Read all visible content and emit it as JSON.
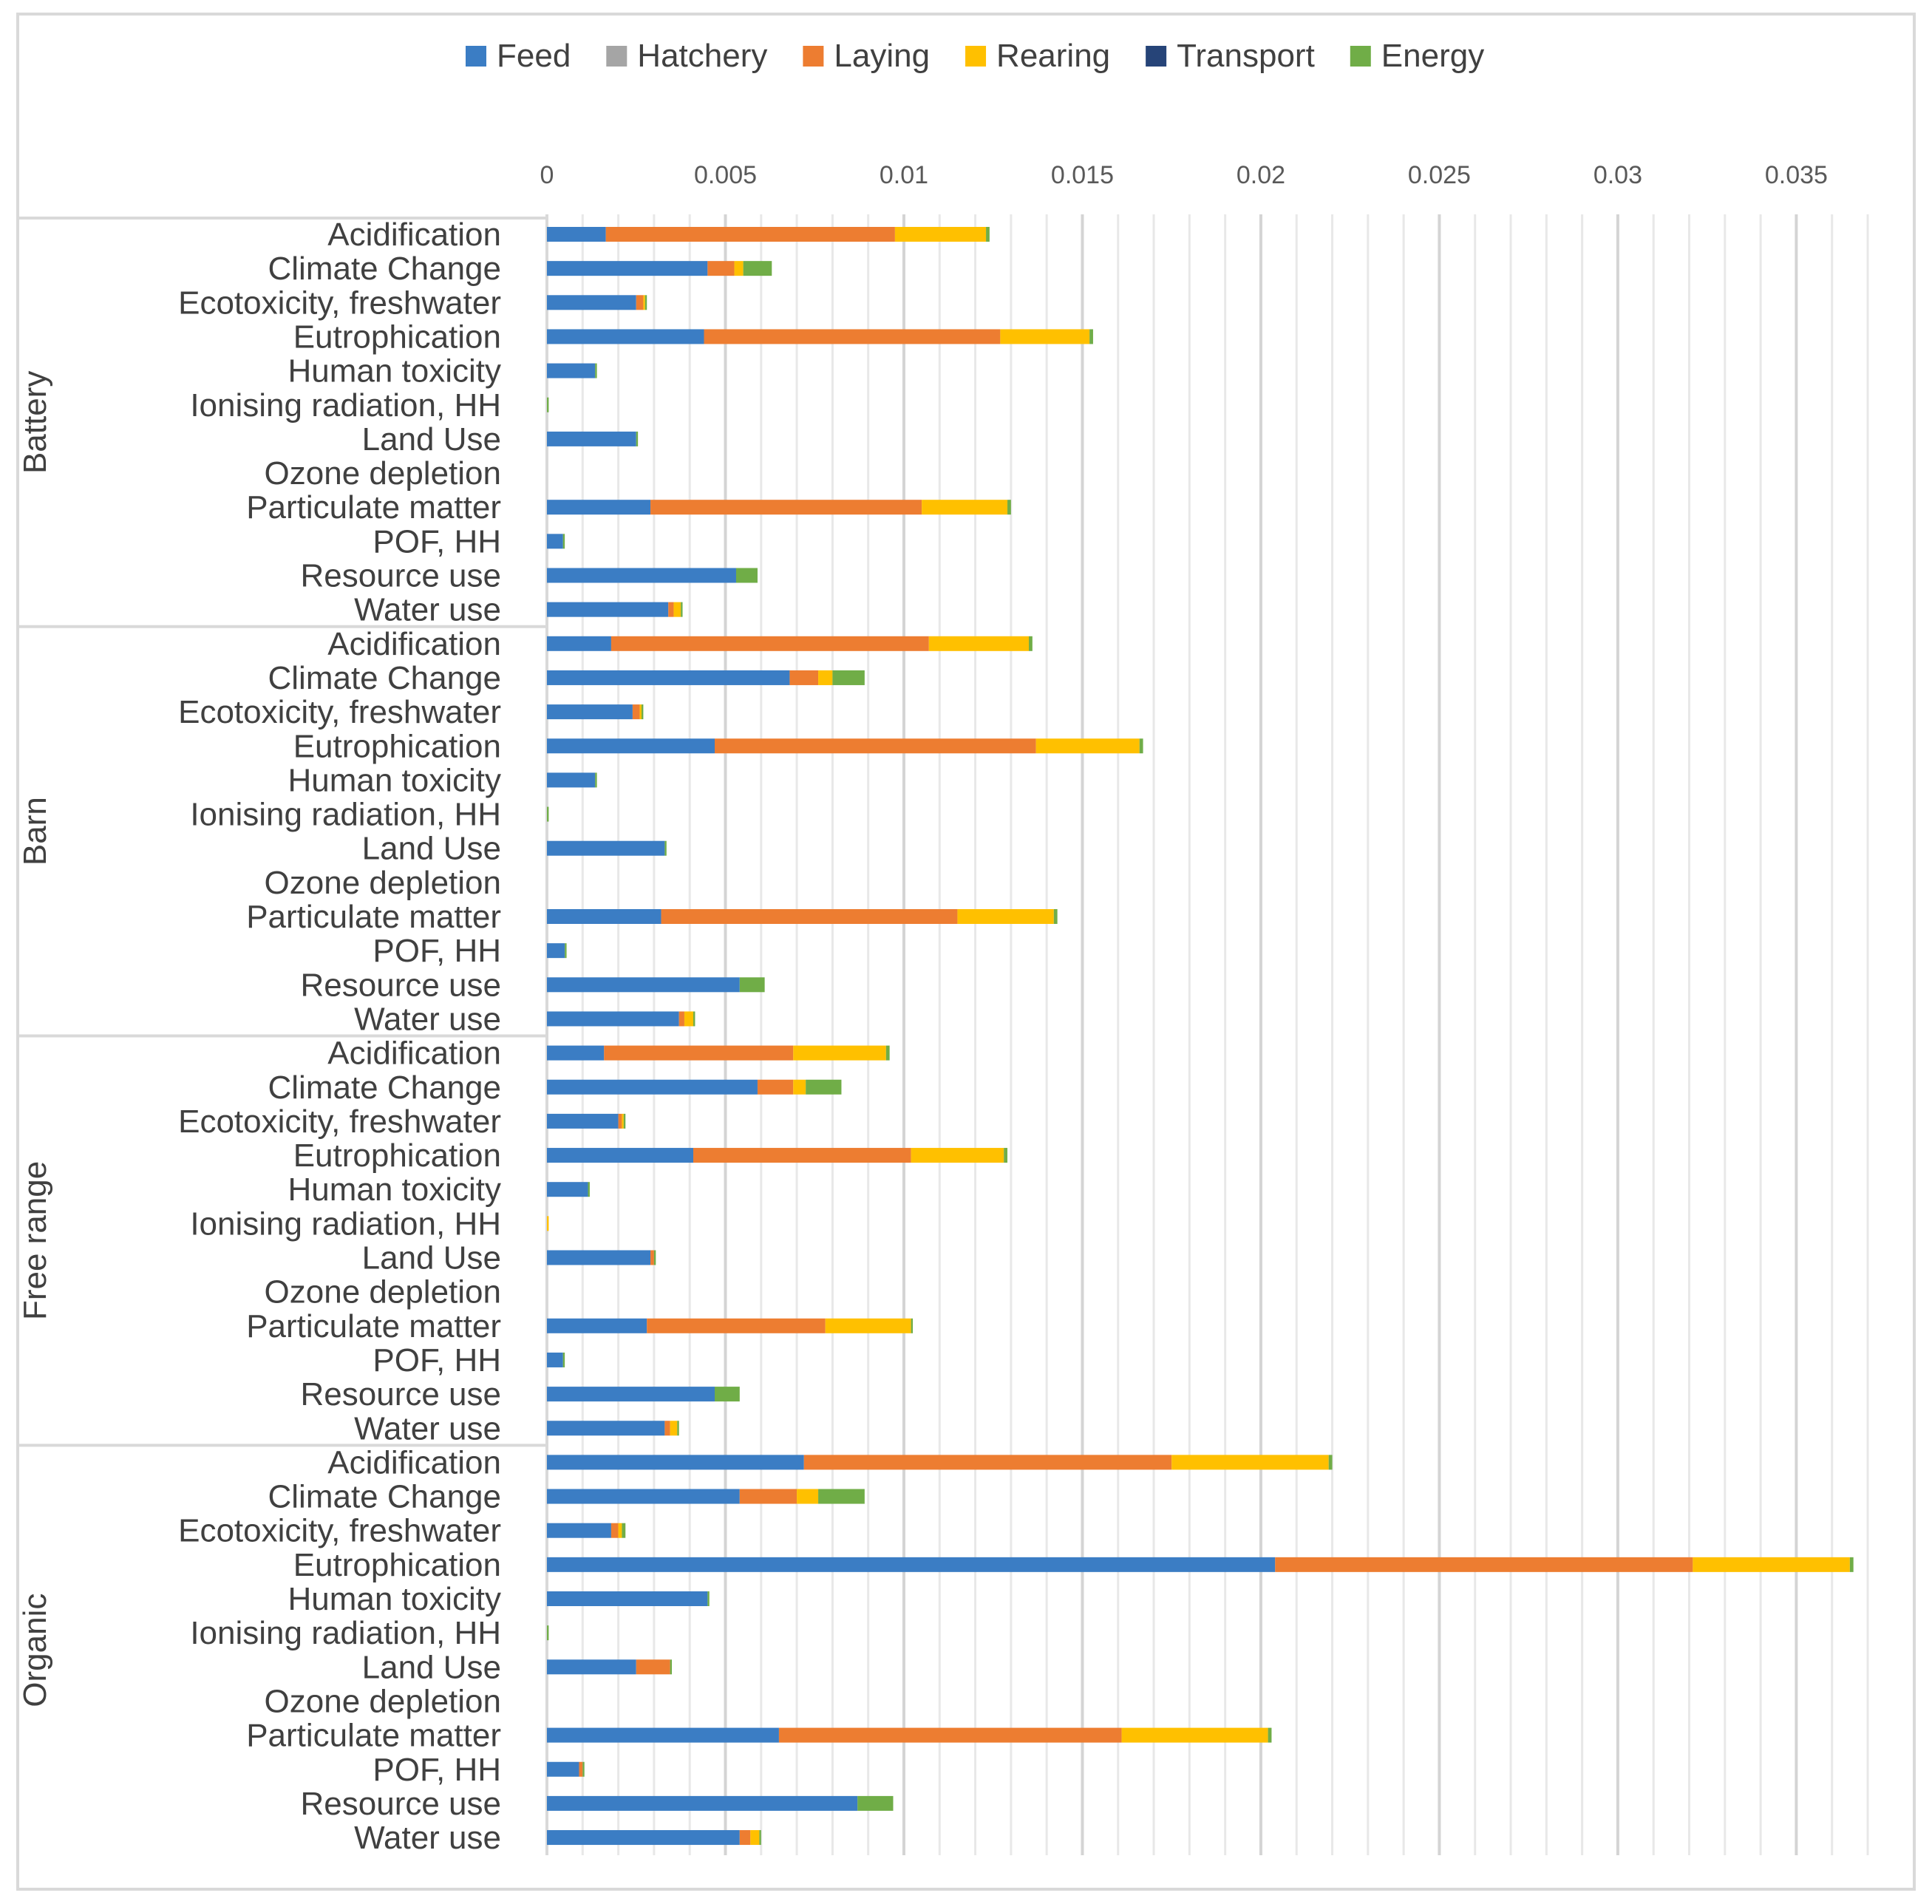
{
  "chart_data": {
    "type": "bar",
    "orientation": "horizontal",
    "stacked": true,
    "title": "",
    "xlabel": "",
    "ylabel": "",
    "xlim": [
      0,
      0.037
    ],
    "x_ticks": [
      0,
      0.005,
      0.01,
      0.015,
      0.02,
      0.025,
      0.03,
      0.035
    ],
    "x_tick_labels": [
      "0",
      "0.005",
      "0.01",
      "0.015",
      "0.02",
      "0.025",
      "0.03",
      "0.035"
    ],
    "grid": "vertical",
    "legend_position": "top",
    "series": [
      {
        "name": "Feed",
        "color": "#3B7DC4"
      },
      {
        "name": "Hatchery",
        "color": "#A5A5A5"
      },
      {
        "name": "Laying",
        "color": "#ED7D31"
      },
      {
        "name": "Rearing",
        "color": "#FFC000"
      },
      {
        "name": "Transport",
        "color": "#264478"
      },
      {
        "name": "Energy",
        "color": "#70AD47"
      }
    ],
    "groups": [
      {
        "name": "Battery",
        "rows": [
          {
            "label": "Acidification",
            "values": [
              0.00165,
              0,
              0.0081,
              0.00255,
              0,
              0.0001
            ]
          },
          {
            "label": "Climate Change",
            "values": [
              0.0045,
              0,
              0.00075,
              0.00025,
              0,
              0.0008
            ]
          },
          {
            "label": "Ecotoxicity, freshwater",
            "values": [
              0.0025,
              0,
              0.0002,
              5e-05,
              0,
              5e-05
            ]
          },
          {
            "label": "Eutrophication",
            "values": [
              0.0044,
              0,
              0.0083,
              0.0025,
              0,
              0.0001
            ]
          },
          {
            "label": "Human toxicity",
            "values": [
              0.00135,
              0,
              0,
              0,
              0,
              5e-05
            ]
          },
          {
            "label": "Ionising radiation, HH",
            "values": [
              0,
              0,
              0,
              0,
              0,
              5e-05
            ]
          },
          {
            "label": "Land Use",
            "values": [
              0.0025,
              0,
              0,
              0,
              0,
              5e-05
            ]
          },
          {
            "label": "Ozone depletion",
            "values": [
              0,
              0,
              0,
              0,
              0,
              0
            ]
          },
          {
            "label": "Particulate matter",
            "values": [
              0.0029,
              0,
              0.0076,
              0.0024,
              0,
              0.0001
            ]
          },
          {
            "label": "POF, HH",
            "values": [
              0.00045,
              0,
              0,
              0,
              0,
              5e-05
            ]
          },
          {
            "label": "Resource use",
            "values": [
              0.0053,
              0,
              0,
              0,
              0,
              0.0006
            ]
          },
          {
            "label": "Water use",
            "values": [
              0.0034,
              0,
              0.00015,
              0.0002,
              0,
              5e-05
            ]
          }
        ]
      },
      {
        "name": "Barn",
        "rows": [
          {
            "label": "Acidification",
            "values": [
              0.0018,
              0,
              0.0089,
              0.0028,
              0,
              0.0001
            ]
          },
          {
            "label": "Climate Change",
            "values": [
              0.0068,
              0,
              0.0008,
              0.0004,
              0,
              0.0009
            ]
          },
          {
            "label": "Ecotoxicity, freshwater",
            "values": [
              0.0024,
              0,
              0.0002,
              5e-05,
              0,
              5e-05
            ]
          },
          {
            "label": "Eutrophication",
            "values": [
              0.0047,
              0,
              0.009,
              0.0029,
              0,
              0.0001
            ]
          },
          {
            "label": "Human toxicity",
            "values": [
              0.00135,
              0,
              0,
              0,
              0,
              5e-05
            ]
          },
          {
            "label": "Ionising radiation, HH",
            "values": [
              0,
              0,
              0,
              0,
              0,
              5e-05
            ]
          },
          {
            "label": "Land Use",
            "values": [
              0.0033,
              0,
              0,
              0,
              0,
              5e-05
            ]
          },
          {
            "label": "Ozone depletion",
            "values": [
              0,
              0,
              0,
              0,
              0,
              0
            ]
          },
          {
            "label": "Particulate matter",
            "values": [
              0.0032,
              0,
              0.0083,
              0.0027,
              0,
              0.0001
            ]
          },
          {
            "label": "POF, HH",
            "values": [
              0.0005,
              0,
              0,
              0,
              0,
              5e-05
            ]
          },
          {
            "label": "Resource use",
            "values": [
              0.0054,
              0,
              0,
              0,
              0,
              0.0007
            ]
          },
          {
            "label": "Water use",
            "values": [
              0.0037,
              0,
              0.00015,
              0.00025,
              0,
              5e-05
            ]
          }
        ]
      },
      {
        "name": "Free range",
        "rows": [
          {
            "label": "Acidification",
            "values": [
              0.0016,
              0,
              0.0053,
              0.0026,
              0,
              0.0001
            ]
          },
          {
            "label": "Climate Change",
            "values": [
              0.0059,
              0,
              0.001,
              0.00035,
              0,
              0.001
            ]
          },
          {
            "label": "Ecotoxicity, freshwater",
            "values": [
              0.002,
              0,
              0.0001,
              5e-05,
              0,
              5e-05
            ]
          },
          {
            "label": "Eutrophication",
            "values": [
              0.0041,
              0,
              0.0061,
              0.0026,
              0,
              0.0001
            ]
          },
          {
            "label": "Human toxicity",
            "values": [
              0.00115,
              0,
              0,
              0,
              0,
              5e-05
            ]
          },
          {
            "label": "Ionising radiation, HH",
            "values": [
              0,
              0,
              0,
              5e-05,
              0,
              0
            ]
          },
          {
            "label": "Land Use",
            "values": [
              0.0029,
              0,
              0.0001,
              0,
              0,
              5e-05
            ]
          },
          {
            "label": "Ozone depletion",
            "values": [
              0,
              0,
              0,
              0,
              0,
              0
            ]
          },
          {
            "label": "Particulate matter",
            "values": [
              0.0028,
              0,
              0.005,
              0.0024,
              0,
              5e-05
            ]
          },
          {
            "label": "POF, HH",
            "values": [
              0.00045,
              0,
              0,
              0,
              0,
              5e-05
            ]
          },
          {
            "label": "Resource use",
            "values": [
              0.0047,
              0,
              0,
              0,
              0,
              0.0007
            ]
          },
          {
            "label": "Water use",
            "values": [
              0.0033,
              0,
              0.00015,
              0.0002,
              0,
              5e-05
            ]
          }
        ]
      },
      {
        "name": "Organic",
        "rows": [
          {
            "label": "Acidification",
            "values": [
              0.0072,
              0,
              0.0103,
              0.0044,
              0,
              0.0001
            ]
          },
          {
            "label": "Climate Change",
            "values": [
              0.0054,
              0,
              0.0016,
              0.0006,
              0,
              0.0013
            ]
          },
          {
            "label": "Ecotoxicity, freshwater",
            "values": [
              0.0018,
              0,
              0.0002,
              0.0001,
              0,
              0.0001
            ]
          },
          {
            "label": "Eutrophication",
            "values": [
              0.0204,
              0,
              0.0117,
              0.0044,
              0,
              0.0001
            ]
          },
          {
            "label": "Human toxicity",
            "values": [
              0.0045,
              0,
              0,
              0,
              0,
              5e-05
            ]
          },
          {
            "label": "Ionising radiation, HH",
            "values": [
              0,
              0,
              0,
              0,
              0,
              5e-05
            ]
          },
          {
            "label": "Land Use",
            "values": [
              0.0025,
              0,
              0.00095,
              0,
              0,
              5e-05
            ]
          },
          {
            "label": "Ozone depletion",
            "values": [
              0,
              0,
              0,
              0,
              0,
              0
            ]
          },
          {
            "label": "Particulate matter",
            "values": [
              0.0065,
              0,
              0.0096,
              0.0041,
              0,
              0.0001
            ]
          },
          {
            "label": "POF, HH",
            "values": [
              0.0009,
              0,
              0.0001,
              0,
              0,
              5e-05
            ]
          },
          {
            "label": "Resource use",
            "values": [
              0.0087,
              0,
              0,
              0,
              0,
              0.001
            ]
          },
          {
            "label": "Water use",
            "values": [
              0.0054,
              0,
              0.0003,
              0.00025,
              0,
              5e-05
            ]
          }
        ]
      }
    ]
  }
}
